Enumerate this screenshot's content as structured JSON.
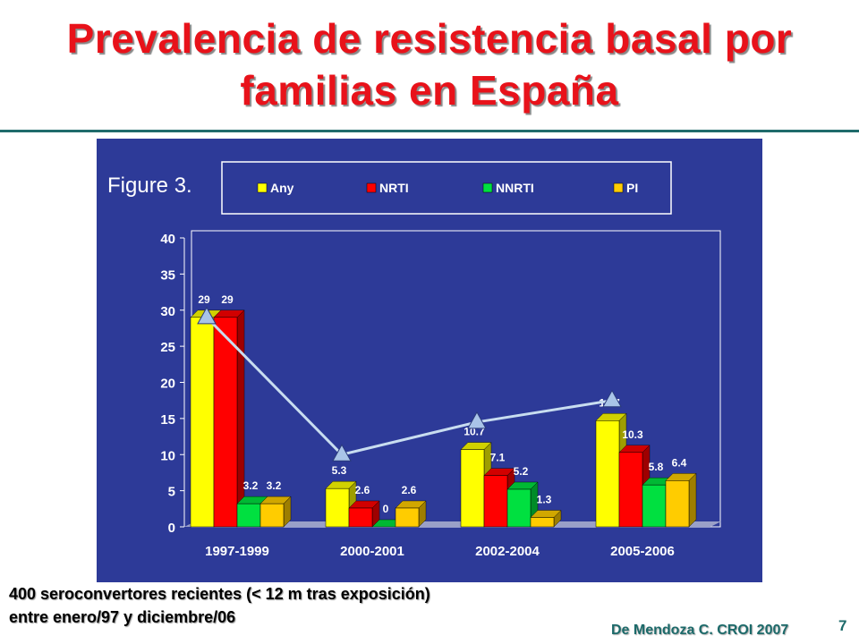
{
  "slide": {
    "title_line1": "Prevalencia de resistencia basal por",
    "title_line2": "familias en España",
    "footnote_line1": "400 seroconvertores recientes (< 12 m tras exposición)",
    "footnote_line2": "entre enero/97 y diciembre/06",
    "citation": "De Mendoza C. CROI 2007",
    "page_number": "7"
  },
  "chart_data": {
    "type": "bar",
    "title": "Figure 3.",
    "categories": [
      "1997-1999",
      "2000-2001",
      "2002-2004",
      "2005-2006"
    ],
    "series": [
      {
        "name": "Any",
        "color": "#ffff00",
        "values": [
          29,
          5.3,
          10.7,
          14.7
        ]
      },
      {
        "name": "NRTI",
        "color": "#ff0000",
        "values": [
          29,
          2.6,
          7.1,
          10.3
        ]
      },
      {
        "name": "NNRTI",
        "color": "#00e040",
        "values": [
          3.2,
          0,
          5.2,
          5.8
        ]
      },
      {
        "name": "PI",
        "color": "#ffcc00",
        "values": [
          3.2,
          2.6,
          1.3,
          6.4
        ]
      }
    ],
    "trend_line": {
      "marker": "triangle",
      "color": "#c8ddf0",
      "values": [
        29,
        10,
        14.5,
        17.5
      ]
    },
    "ylim": [
      0,
      40
    ],
    "yticks": [
      0,
      5,
      10,
      15,
      20,
      25,
      30,
      35,
      40
    ],
    "legend_position": "top",
    "background": "#2d3a98"
  }
}
